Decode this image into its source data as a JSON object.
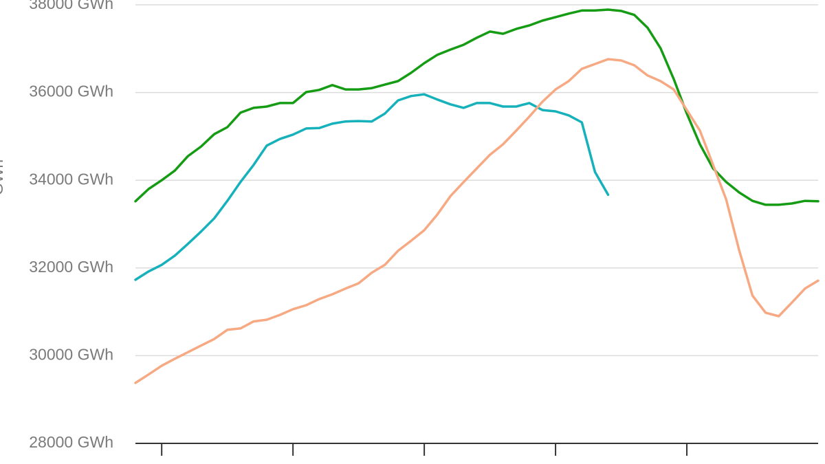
{
  "chart_data": {
    "type": "line",
    "ylabel": "GWh",
    "x": [
      0,
      1,
      2,
      3,
      4,
      5,
      6,
      7,
      8,
      9,
      10,
      11,
      12,
      13,
      14,
      15,
      16,
      17,
      18,
      19,
      20,
      21,
      22,
      23,
      24,
      25,
      26,
      27,
      28,
      29,
      30,
      31,
      32,
      33,
      34,
      35,
      36,
      37,
      38,
      39,
      40,
      41,
      42,
      43,
      44,
      45,
      46,
      47,
      48,
      49,
      50,
      51,
      52
    ],
    "xlim": [
      0,
      52
    ],
    "xticks": [
      2,
      12,
      22,
      32,
      42
    ],
    "ylim": [
      28000,
      38000
    ],
    "yticks": [
      {
        "value": 28000,
        "label": "28000 GWh"
      },
      {
        "value": 30000,
        "label": "30000 GWh"
      },
      {
        "value": 32000,
        "label": "32000 GWh"
      },
      {
        "value": 34000,
        "label": "34000 GWh"
      },
      {
        "value": 36000,
        "label": "36000 GWh"
      },
      {
        "value": 38000,
        "label": "38000 GWh"
      }
    ],
    "grid": true,
    "series": [
      {
        "color": "#169c14",
        "values": [
          33520,
          33800,
          34000,
          34220,
          34550,
          34770,
          35050,
          35210,
          35540,
          35650,
          35680,
          35760,
          35760,
          36010,
          36060,
          36170,
          36070,
          36070,
          36100,
          36180,
          36260,
          36450,
          36670,
          36860,
          36980,
          37090,
          37250,
          37390,
          37340,
          37450,
          37530,
          37640,
          37720,
          37800,
          37870,
          37870,
          37890,
          37860,
          37770,
          37480,
          37010,
          36310,
          35520,
          34820,
          34270,
          33960,
          33720,
          33530,
          33440,
          33440,
          33470,
          33530,
          33520
        ]
      },
      {
        "color": "#16b1bb",
        "values": [
          31730,
          31920,
          32070,
          32280,
          32550,
          32830,
          33130,
          33530,
          33960,
          34350,
          34790,
          34940,
          35040,
          35180,
          35190,
          35290,
          35340,
          35350,
          35340,
          35520,
          35820,
          35920,
          35960,
          35840,
          35730,
          35650,
          35760,
          35760,
          35680,
          35680,
          35760,
          35600,
          35570,
          35480,
          35320,
          34190,
          33670,
          null,
          null,
          null,
          null,
          null,
          null,
          null,
          null,
          null,
          null,
          null,
          null,
          null,
          null,
          null,
          null
        ]
      },
      {
        "color": "#f6a982",
        "values": [
          29380,
          29570,
          29770,
          29930,
          30080,
          30230,
          30380,
          30590,
          30620,
          30780,
          30820,
          30930,
          31060,
          31150,
          31290,
          31400,
          31530,
          31650,
          31890,
          32070,
          32390,
          32620,
          32860,
          33220,
          33640,
          33960,
          34270,
          34580,
          34820,
          35130,
          35450,
          35790,
          36070,
          36260,
          36540,
          36650,
          36760,
          36730,
          36620,
          36390,
          36260,
          36070,
          35600,
          35130,
          34350,
          33560,
          32390,
          31370,
          30980,
          30900,
          31210,
          31530,
          31710
        ]
      }
    ]
  }
}
